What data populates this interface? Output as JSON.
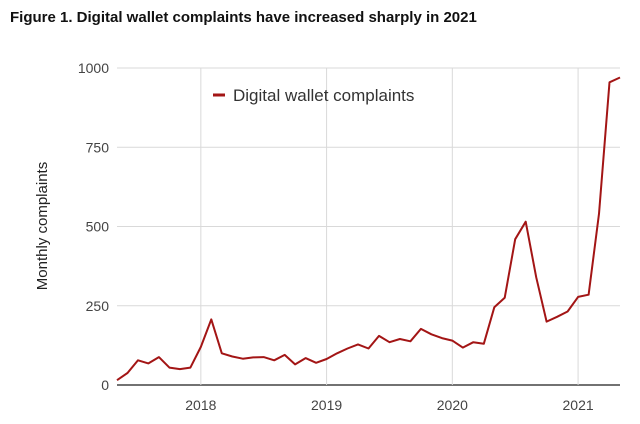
{
  "chart_data": {
    "type": "line",
    "title": "Figure 1. Digital wallet complaints have increased sharply in 2021",
    "xlabel": "",
    "ylabel": "Monthly complaints",
    "ylim": [
      0,
      1000
    ],
    "yticks": [
      0,
      250,
      500,
      750,
      1000
    ],
    "xticks": [
      "2018",
      "2019",
      "2020",
      "2021"
    ],
    "x_start": "2017-05",
    "x_end": "2021-05",
    "grid": true,
    "legend_position": "top-center",
    "series": [
      {
        "name": "Digital wallet complaints",
        "color": "#a31515",
        "values": [
          15,
          38,
          78,
          68,
          88,
          55,
          50,
          55,
          120,
          207,
          100,
          90,
          83,
          87,
          88,
          78,
          95,
          65,
          85,
          70,
          82,
          100,
          115,
          128,
          115,
          155,
          135,
          145,
          138,
          177,
          160,
          148,
          140,
          118,
          135,
          130,
          245,
          275,
          460,
          515,
          340,
          200,
          215,
          232,
          278,
          285,
          540,
          955,
          970
        ]
      }
    ]
  }
}
